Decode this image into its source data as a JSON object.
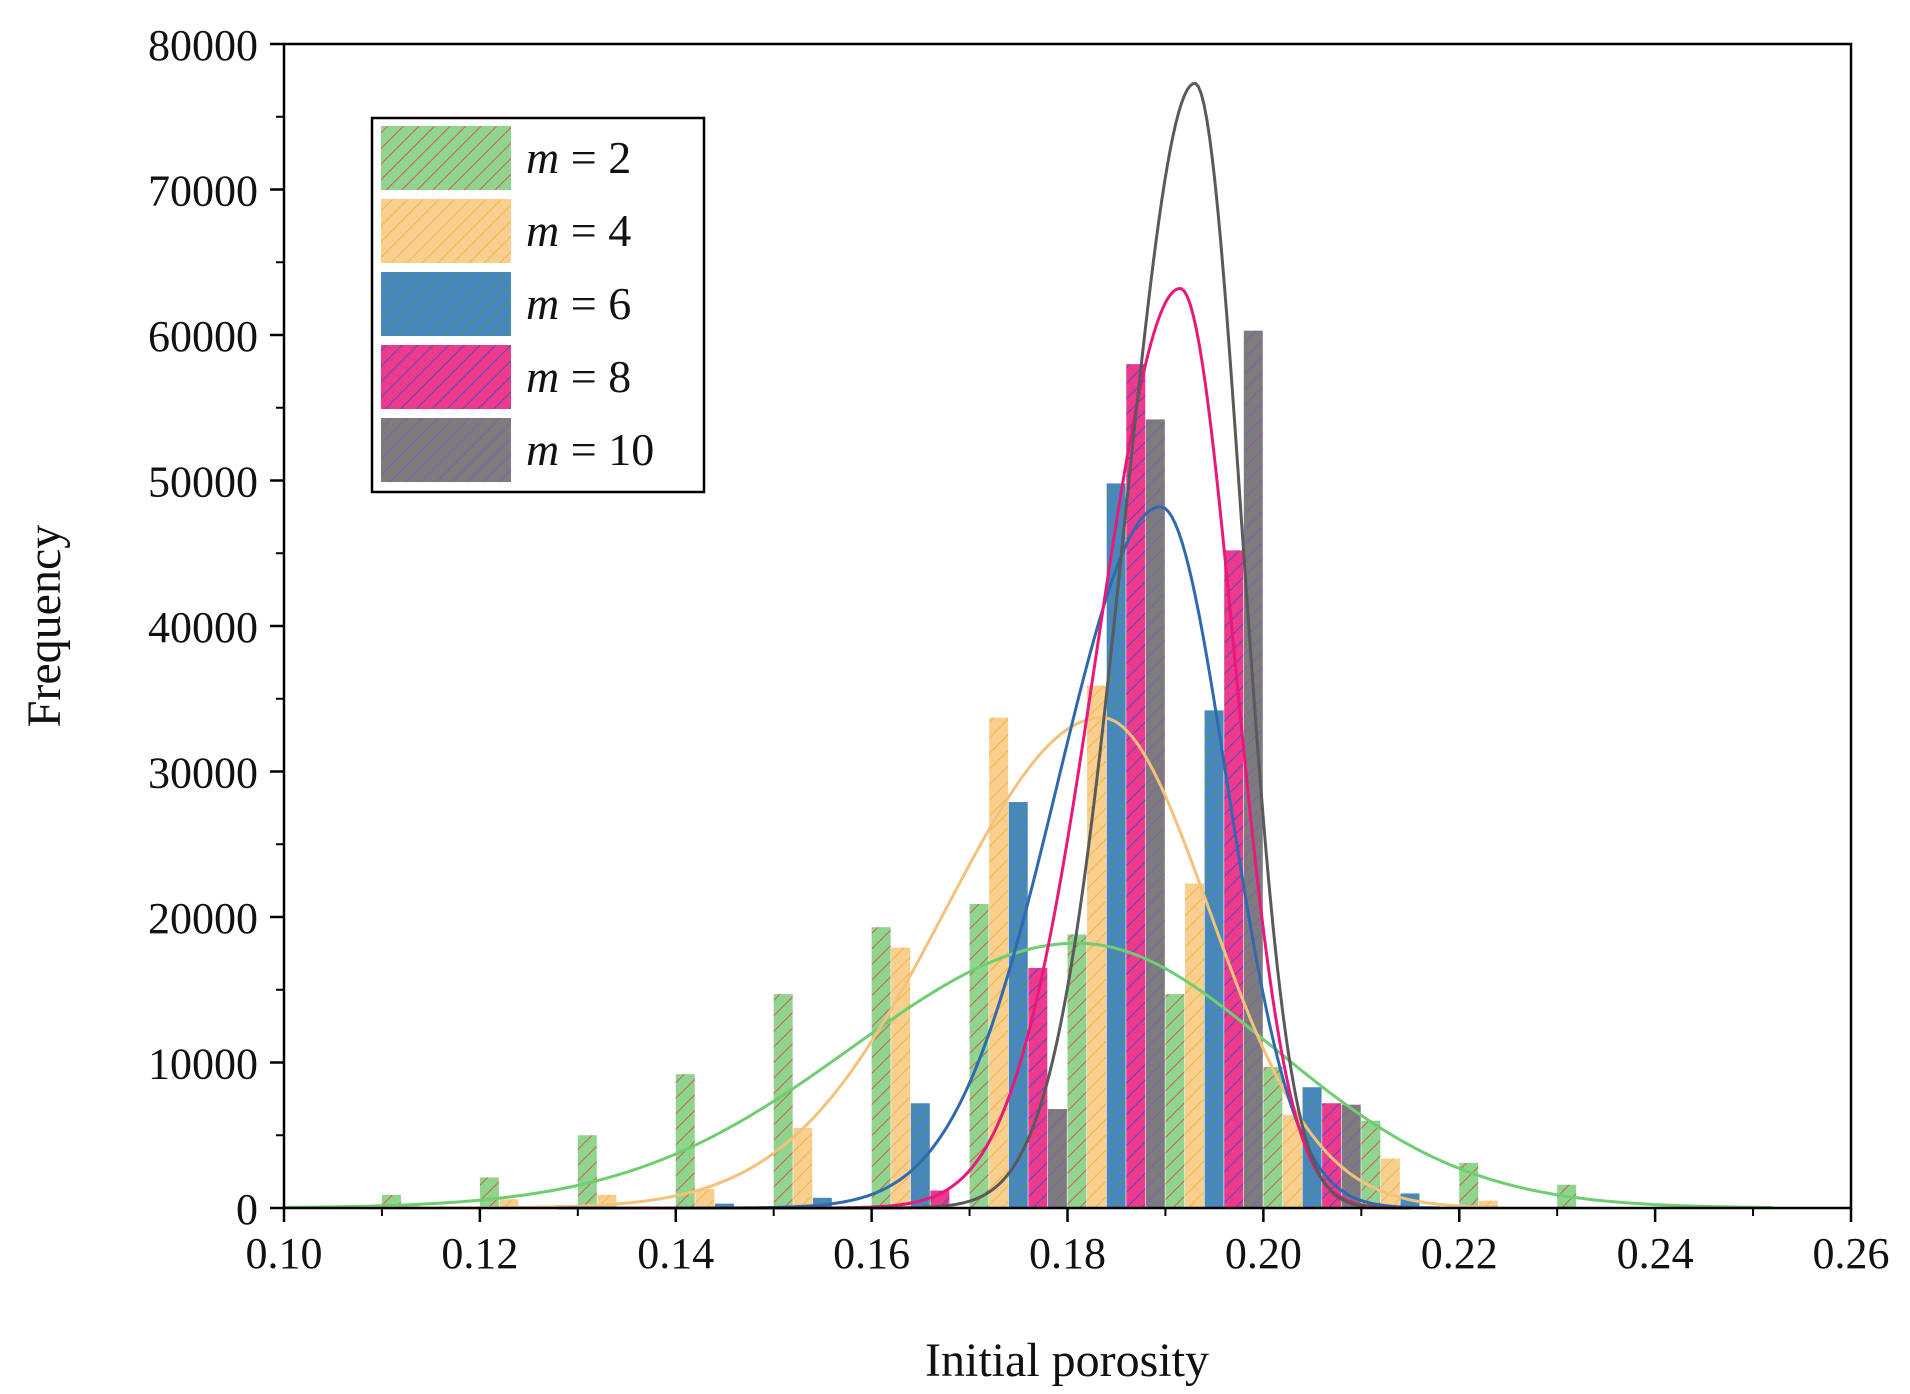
{
  "chart_data": {
    "type": "bar",
    "title": "",
    "xlabel": "Initial porosity",
    "ylabel": "Frequency",
    "xlim": [
      0.1,
      0.26
    ],
    "ylim": [
      0,
      80000
    ],
    "x_ticks": [
      "0.10",
      "0.12",
      "0.14",
      "0.16",
      "0.18",
      "0.20",
      "0.22",
      "0.24",
      "0.26"
    ],
    "y_ticks": [
      "0",
      "10000",
      "20000",
      "30000",
      "40000",
      "50000",
      "60000",
      "70000",
      "80000"
    ],
    "bin_width": 0.01,
    "legend": {
      "position": "top-left",
      "prefix": "m",
      "separator": " = "
    },
    "series": [
      {
        "name": "m = 2",
        "m_value": "2",
        "color": "#8fd48f",
        "hatch": "#e0403a",
        "line": "#6fce6f",
        "x": [
          0.11,
          0.12,
          0.13,
          0.14,
          0.15,
          0.16,
          0.17,
          0.18,
          0.19,
          0.2,
          0.21,
          0.22,
          0.23
        ],
        "values": [
          900,
          2100,
          5000,
          9200,
          14700,
          19300,
          20900,
          18800,
          14700,
          9700,
          6000,
          3100,
          1600
        ],
        "fit": {
          "mu": 0.181,
          "sd_left": 0.023,
          "sd_right": 0.02,
          "peak": 18200,
          "x_from": 0.1,
          "x_to": 0.252
        }
      },
      {
        "name": "m = 4",
        "m_value": "4",
        "color": "#f8cf8e",
        "hatch": "#f0b030",
        "line": "#f4c27a",
        "x": [
          0.11,
          0.12,
          0.13,
          0.14,
          0.15,
          0.16,
          0.17,
          0.18,
          0.19,
          0.2,
          0.21,
          0.22
        ],
        "values": [
          200,
          600,
          900,
          1300,
          5500,
          17900,
          33700,
          35900,
          22300,
          6400,
          3400,
          500
        ],
        "fit": {
          "mu": 0.1835,
          "sd_left": 0.016,
          "sd_right": 0.011,
          "peak": 33700,
          "x_from": 0.108,
          "x_to": 0.224
        }
      },
      {
        "name": "m = 6",
        "m_value": "6",
        "color": "#4a84c1",
        "hatch": "#30b040",
        "line": "#2f6ab0",
        "x": [
          0.14,
          0.15,
          0.16,
          0.17,
          0.18,
          0.19,
          0.2,
          0.21
        ],
        "values": [
          300,
          700,
          7200,
          27900,
          49800,
          34200,
          8300,
          1000
        ],
        "fit": {
          "mu": 0.1895,
          "sd_left": 0.0105,
          "sd_right": 0.0068,
          "peak": 48200,
          "x_from": 0.128,
          "x_to": 0.218
        }
      },
      {
        "name": "m = 8",
        "m_value": "8",
        "color": "#ee3a8c",
        "hatch": "#3050c0",
        "line": "#e8197a",
        "x": [
          0.16,
          0.17,
          0.18,
          0.19,
          0.2
        ],
        "values": [
          1200,
          16500,
          58000,
          45200,
          7200
        ],
        "fit": {
          "mu": 0.1915,
          "sd_left": 0.0085,
          "sd_right": 0.0055,
          "peak": 63200,
          "x_from": 0.135,
          "x_to": 0.215
        }
      },
      {
        "name": "m = 10",
        "m_value": "10",
        "color": "#7c7c7c",
        "hatch": "#9050c8",
        "line": "#5a5a5a",
        "x": [
          0.17,
          0.18,
          0.19,
          0.2
        ],
        "values": [
          6800,
          54200,
          60300,
          7100
        ],
        "fit": {
          "mu": 0.193,
          "sd_left": 0.0072,
          "sd_right": 0.0048,
          "peak": 77300,
          "x_from": 0.14,
          "x_to": 0.215
        }
      }
    ]
  }
}
